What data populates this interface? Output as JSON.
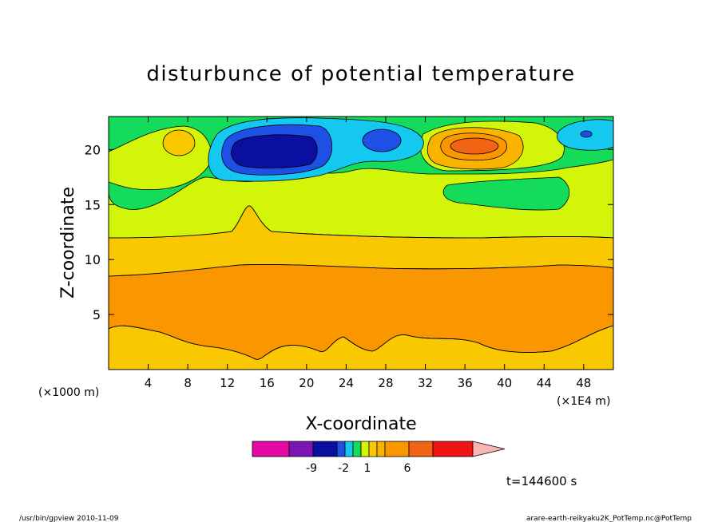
{
  "chart_data": {
    "type": "heatmap",
    "title": "disturbunce of potential temperature",
    "xlabel": "X-coordinate",
    "ylabel": "Z-coordinate",
    "x_unit_left": "(×1000 m)",
    "x_unit_right": "(×1E4 m)",
    "x_ticks": [
      4,
      8,
      12,
      16,
      20,
      24,
      28,
      32,
      36,
      40,
      44,
      48
    ],
    "y_ticks": [
      5,
      10,
      15,
      20
    ],
    "xlim": [
      0,
      51
    ],
    "ylim": [
      0,
      23
    ],
    "time_label": "t=144600 s",
    "colorbar": {
      "colors": [
        "#e60aa5",
        "#7d14b4",
        "#0a0fa0",
        "#1e50e6",
        "#14c8f0",
        "#14dc5a",
        "#d2f50a",
        "#fac800",
        "#fab400",
        "#fa9600",
        "#f06414",
        "#f01414",
        "#fa7878",
        "#fab4b4"
      ],
      "labels": [
        "-9",
        "-2",
        "1",
        "6"
      ]
    },
    "regions": [
      {
        "name": "orange band (~0.5 to 1)",
        "color": "#fa9600",
        "z_range": [
          3.8,
          9.3
        ]
      },
      {
        "name": "dark-blue minimum",
        "color": "#0a0fa0",
        "center": [
          17.5,
          20.2
        ]
      },
      {
        "name": "orange-red maximum",
        "color": "#f06414",
        "center": [
          37.5,
          20.2
        ]
      }
    ]
  },
  "footer": {
    "left": "/usr/bin/gpview   2010-11-09",
    "right": "arare-earth-reikyaku2K_PotTemp.nc@PotTemp"
  }
}
